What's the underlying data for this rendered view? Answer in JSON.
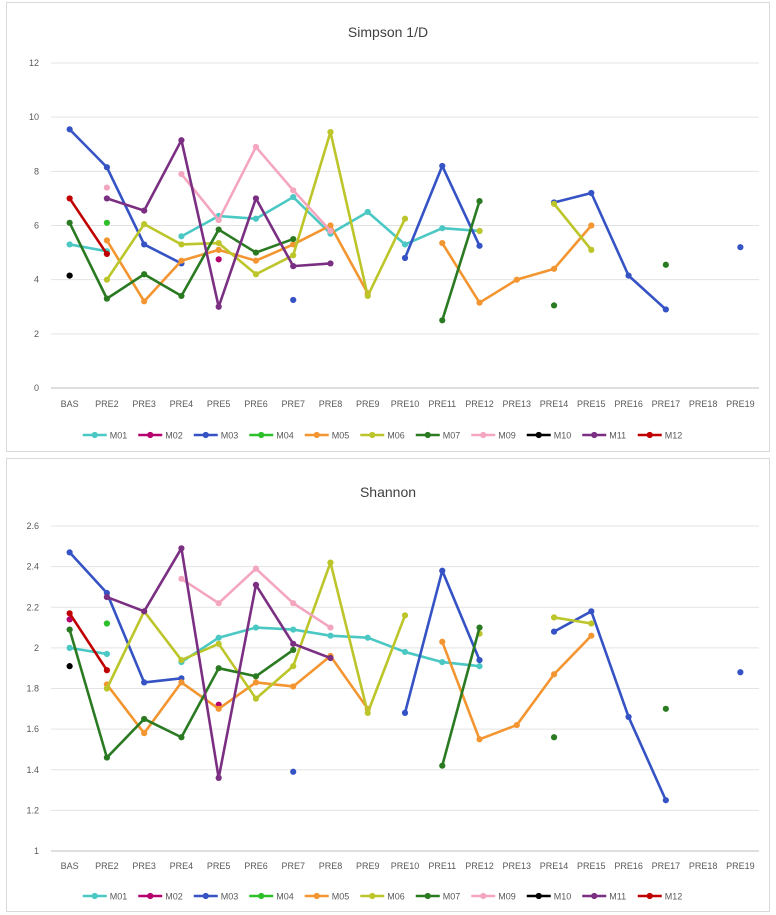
{
  "chart_data": [
    {
      "type": "line",
      "title": "Simpson 1/D",
      "xlabel": "",
      "ylabel": "",
      "ylim": [
        0,
        12
      ],
      "yticks": [
        "0",
        "2",
        "4",
        "6",
        "8",
        "10",
        "12"
      ],
      "categories": [
        "BAS",
        "PRE2",
        "PRE3",
        "PRE4",
        "PRE5",
        "PRE6",
        "PRE7",
        "PRE8",
        "PRE9",
        "PRE10",
        "PRE11",
        "PRE12",
        "PRE13",
        "PRE14",
        "PRE15",
        "PRE16",
        "PRE17",
        "PRE18",
        "PRE19"
      ],
      "legend_position": "bottom",
      "grid": true,
      "series": [
        {
          "name": "M01",
          "color": "#4bc8c3",
          "values": [
            5.3,
            5.05,
            null,
            5.6,
            6.35,
            6.25,
            7.05,
            5.7,
            6.5,
            5.3,
            5.9,
            5.8,
            null,
            null,
            null,
            null,
            null,
            null,
            null
          ]
        },
        {
          "name": "M02",
          "color": "#b5006e",
          "values": [
            null,
            null,
            null,
            null,
            4.75,
            null,
            null,
            null,
            null,
            null,
            null,
            null,
            null,
            null,
            null,
            null,
            null,
            null,
            null
          ]
        },
        {
          "name": "M03",
          "color": "#3553c4",
          "values": [
            9.55,
            8.15,
            5.3,
            4.6,
            null,
            null,
            3.25,
            null,
            null,
            4.8,
            8.2,
            5.25,
            null,
            6.85,
            7.2,
            4.15,
            2.9,
            null,
            5.2
          ]
        },
        {
          "name": "M04",
          "color": "#2ec02b",
          "values": [
            null,
            6.1,
            null,
            null,
            null,
            null,
            null,
            null,
            null,
            null,
            null,
            null,
            null,
            null,
            null,
            null,
            null,
            null,
            null
          ]
        },
        {
          "name": "M05",
          "color": "#f39631",
          "values": [
            null,
            5.45,
            3.2,
            4.7,
            5.1,
            4.7,
            5.3,
            6.0,
            3.5,
            null,
            5.35,
            3.15,
            4.0,
            4.4,
            6.0,
            null,
            null,
            null,
            null
          ]
        },
        {
          "name": "M06",
          "color": "#bcc52a",
          "values": [
            null,
            4.0,
            6.05,
            5.3,
            5.35,
            4.2,
            4.9,
            9.45,
            3.4,
            6.25,
            null,
            5.8,
            null,
            6.8,
            5.1,
            null,
            null,
            null,
            null
          ]
        },
        {
          "name": "M07",
          "color": "#2a7a22",
          "values": [
            6.1,
            3.3,
            4.2,
            3.4,
            5.85,
            5.0,
            5.5,
            null,
            null,
            null,
            2.5,
            6.9,
            null,
            3.05,
            null,
            null,
            4.55,
            null,
            null
          ]
        },
        {
          "name": "M09",
          "color": "#f4a6bf",
          "values": [
            null,
            7.4,
            null,
            7.9,
            6.2,
            8.9,
            7.3,
            5.8,
            null,
            null,
            null,
            null,
            null,
            null,
            null,
            null,
            null,
            null,
            null
          ]
        },
        {
          "name": "M10",
          "color": "#000000",
          "values": [
            4.15,
            null,
            null,
            null,
            null,
            null,
            null,
            null,
            null,
            null,
            null,
            null,
            null,
            null,
            null,
            null,
            null,
            null,
            null
          ]
        },
        {
          "name": "M11",
          "color": "#7b2f82",
          "values": [
            null,
            7.0,
            6.55,
            9.15,
            3.0,
            7.0,
            4.5,
            4.6,
            null,
            null,
            null,
            null,
            null,
            null,
            null,
            null,
            null,
            null,
            null
          ]
        },
        {
          "name": "M12",
          "color": "#c00000",
          "values": [
            7.0,
            4.95,
            null,
            null,
            null,
            null,
            null,
            null,
            null,
            null,
            null,
            null,
            null,
            null,
            null,
            null,
            null,
            null,
            null
          ]
        }
      ]
    },
    {
      "type": "line",
      "title": "Shannon",
      "xlabel": "",
      "ylabel": "",
      "ylim": [
        1,
        2.6
      ],
      "yticks": [
        "1",
        "1.2",
        "1.4",
        "1.6",
        "1.8",
        "2",
        "2.2",
        "2.4",
        "2.6"
      ],
      "categories": [
        "BAS",
        "PRE2",
        "PRE3",
        "PRE4",
        "PRE5",
        "PRE6",
        "PRE7",
        "PRE8",
        "PRE9",
        "PRE10",
        "PRE11",
        "PRE12",
        "PRE13",
        "PRE14",
        "PRE15",
        "PRE16",
        "PRE17",
        "PRE18",
        "PRE19"
      ],
      "legend_position": "bottom",
      "grid": true,
      "series": [
        {
          "name": "M01",
          "color": "#4bc8c3",
          "values": [
            2.0,
            1.97,
            null,
            1.93,
            2.05,
            2.1,
            2.09,
            2.06,
            2.05,
            1.98,
            1.93,
            1.91,
            null,
            null,
            null,
            null,
            null,
            null,
            null
          ]
        },
        {
          "name": "M02",
          "color": "#b5006e",
          "values": [
            2.14,
            null,
            null,
            null,
            1.72,
            null,
            null,
            null,
            null,
            null,
            null,
            null,
            null,
            null,
            null,
            null,
            null,
            null,
            null
          ]
        },
        {
          "name": "M03",
          "color": "#3553c4",
          "values": [
            2.47,
            2.27,
            1.83,
            1.85,
            null,
            null,
            1.39,
            null,
            null,
            1.68,
            2.38,
            1.94,
            null,
            2.08,
            2.18,
            1.66,
            1.25,
            null,
            1.88
          ]
        },
        {
          "name": "M04",
          "color": "#2ec02b",
          "values": [
            null,
            2.12,
            null,
            null,
            null,
            null,
            null,
            null,
            null,
            null,
            null,
            null,
            null,
            null,
            null,
            null,
            null,
            null,
            null
          ]
        },
        {
          "name": "M05",
          "color": "#f39631",
          "values": [
            null,
            1.82,
            1.58,
            1.83,
            1.7,
            1.83,
            1.81,
            1.96,
            1.7,
            null,
            2.03,
            1.55,
            1.62,
            1.87,
            2.06,
            null,
            null,
            null,
            null
          ]
        },
        {
          "name": "M06",
          "color": "#bcc52a",
          "values": [
            null,
            1.8,
            2.18,
            1.94,
            2.02,
            1.75,
            1.91,
            2.42,
            1.68,
            2.16,
            null,
            2.07,
            null,
            2.15,
            2.12,
            null,
            null,
            null,
            null
          ]
        },
        {
          "name": "M07",
          "color": "#2a7a22",
          "values": [
            2.09,
            1.46,
            1.65,
            1.56,
            1.9,
            1.86,
            1.99,
            null,
            null,
            null,
            1.42,
            2.1,
            null,
            1.56,
            null,
            null,
            1.7,
            null,
            null
          ]
        },
        {
          "name": "M09",
          "color": "#f4a6bf",
          "values": [
            null,
            null,
            null,
            2.34,
            2.22,
            2.39,
            2.22,
            2.1,
            null,
            null,
            null,
            null,
            null,
            null,
            null,
            null,
            null,
            null,
            null
          ]
        },
        {
          "name": "M10",
          "color": "#000000",
          "values": [
            1.91,
            null,
            null,
            null,
            null,
            null,
            null,
            null,
            null,
            null,
            null,
            null,
            null,
            null,
            null,
            null,
            null,
            null,
            null
          ]
        },
        {
          "name": "M11",
          "color": "#7b2f82",
          "values": [
            null,
            2.25,
            2.18,
            2.49,
            1.36,
            2.31,
            2.02,
            1.95,
            null,
            null,
            null,
            null,
            null,
            null,
            null,
            null,
            null,
            null,
            null
          ]
        },
        {
          "name": "M12",
          "color": "#c00000",
          "values": [
            2.17,
            1.89,
            null,
            null,
            null,
            null,
            null,
            null,
            null,
            null,
            null,
            null,
            null,
            null,
            null,
            null,
            null,
            null,
            null
          ]
        }
      ]
    }
  ]
}
